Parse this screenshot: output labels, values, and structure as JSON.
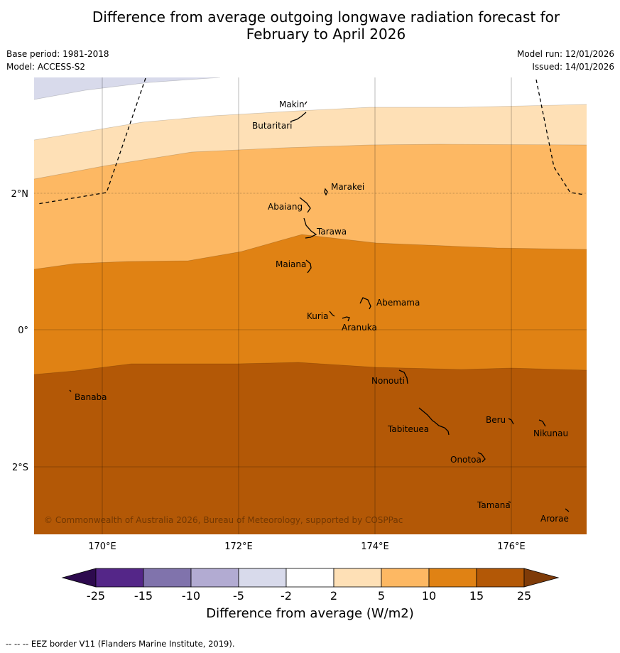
{
  "title_line1": "Difference from average outgoing longwave radiation forecast for",
  "title_line2": "February to April 2026",
  "meta_left": {
    "base_period": "Base period: 1981-2018",
    "model": "Model: ACCESS-S2"
  },
  "meta_right": {
    "model_run": "Model run: 12/01/2026",
    "issued": "Issued: 14/01/2026"
  },
  "axes": {
    "lon_labels": [
      "170°E",
      "172°E",
      "174°E",
      "176°E"
    ],
    "lat_labels": [
      "2°N",
      "0°",
      "2°S"
    ]
  },
  "islands": [
    {
      "name": "Makin"
    },
    {
      "name": "Butaritari"
    },
    {
      "name": "Marakei"
    },
    {
      "name": "Abaiang"
    },
    {
      "name": "Tarawa"
    },
    {
      "name": "Maiana"
    },
    {
      "name": "Abemama"
    },
    {
      "name": "Kuria"
    },
    {
      "name": "Aranuka"
    },
    {
      "name": "Nonouti"
    },
    {
      "name": "Banaba"
    },
    {
      "name": "Tabiteuea"
    },
    {
      "name": "Beru"
    },
    {
      "name": "Nikunau"
    },
    {
      "name": "Onotoa"
    },
    {
      "name": "Tamana"
    },
    {
      "name": "Arorae"
    }
  ],
  "copyright": "© Commonwealth of Australia 2026, Bureau of Meteorology, supported by COSPPac",
  "colorbar": {
    "ticks": [
      "-25",
      "-15",
      "-10",
      "-5",
      "-2",
      "2",
      "5",
      "10",
      "15",
      "25"
    ],
    "colors": {
      "below": "#2d0a4e",
      "b1": "#542688",
      "b2": "#8073ac",
      "b3": "#b2abd2",
      "b4": "#d8daeb",
      "b5": "#ffffff",
      "b6": "#fee0b6",
      "b7": "#fdb863",
      "b8": "#e08214",
      "b9": "#b35806",
      "above": "#7f3b08"
    },
    "title": "Difference from average (W/m2)"
  },
  "footer": "--  --  -- EEZ border V11 (Flanders Marine Institute, 2019)."
}
